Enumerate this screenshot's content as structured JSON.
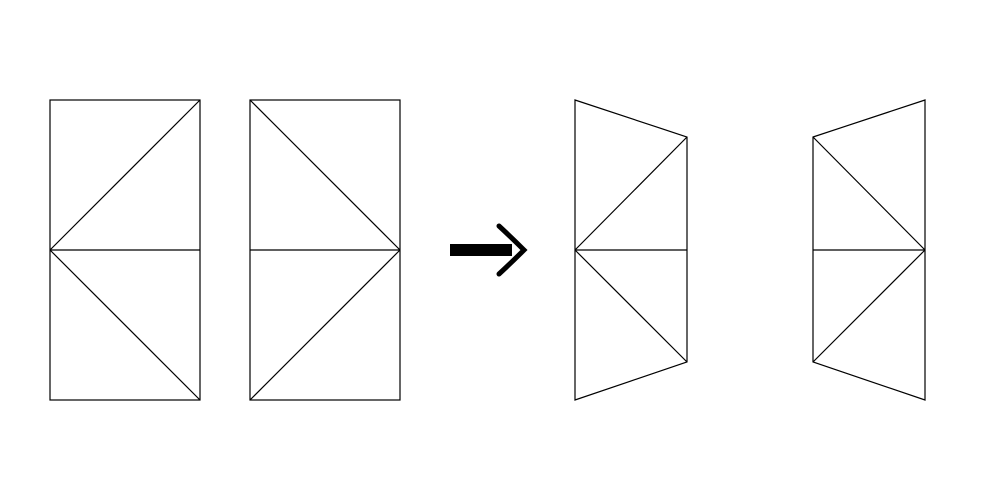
{
  "diagram": {
    "line_color": "#000000",
    "background_color": "#ffffff",
    "figures": [
      {
        "role": "before",
        "name": "left-rectangle-panel"
      },
      {
        "role": "before",
        "name": "right-rectangle-panel"
      },
      {
        "role": "after",
        "name": "left-trapezoid-panel"
      },
      {
        "role": "after",
        "name": "right-trapezoid-panel"
      }
    ],
    "transition_icon": "right-arrow-icon"
  }
}
